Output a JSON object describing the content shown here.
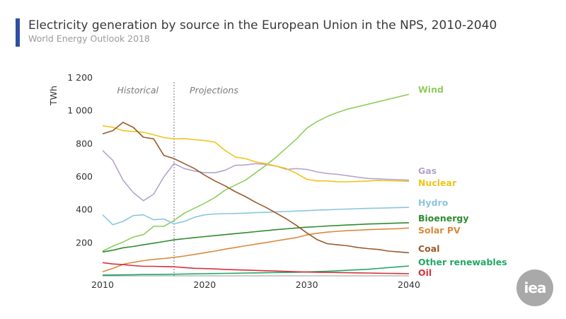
{
  "title": "Electricity generation by source in the European Union in the NPS, 2010-2040",
  "subtitle": "World Energy Outlook 2018",
  "logo_text": "iea",
  "chart_data": {
    "type": "line",
    "ylabel": "TWh",
    "xlabel": "",
    "xlim": [
      2010,
      2040
    ],
    "ylim": [
      0,
      1200
    ],
    "x_ticks": [
      "2010",
      "2020",
      "2030",
      "2040"
    ],
    "y_ticks": [
      "200",
      "400",
      "600",
      "800",
      "1 000",
      "1 200"
    ],
    "y_tick_values": [
      200,
      400,
      600,
      800,
      1000,
      1200
    ],
    "x_tick_values": [
      2010,
      2020,
      2030,
      2040
    ],
    "grid": false,
    "divider_year": 2017,
    "region_labels": [
      "Historical",
      "Projections"
    ],
    "series": [
      {
        "name": "Wind",
        "color": "#8fce5e",
        "x": [
          2010,
          2011,
          2012,
          2013,
          2014,
          2015,
          2016,
          2017,
          2018,
          2019,
          2020,
          2021,
          2022,
          2023,
          2024,
          2025,
          2026,
          2027,
          2028,
          2029,
          2030,
          2031,
          2032,
          2033,
          2034,
          2035,
          2036,
          2037,
          2038,
          2039,
          2040
        ],
        "y": [
          150,
          180,
          205,
          235,
          250,
          300,
          300,
          335,
          380,
          410,
          440,
          475,
          520,
          550,
          580,
          625,
          670,
          720,
          775,
          830,
          895,
          935,
          965,
          990,
          1010,
          1025,
          1040,
          1055,
          1070,
          1085,
          1100
        ]
      },
      {
        "name": "Gas",
        "color": "#b4a3cf",
        "x": [
          2010,
          2011,
          2012,
          2013,
          2014,
          2015,
          2016,
          2017,
          2018,
          2019,
          2020,
          2021,
          2022,
          2023,
          2024,
          2025,
          2026,
          2027,
          2028,
          2029,
          2030,
          2031,
          2032,
          2033,
          2034,
          2035,
          2036,
          2037,
          2038,
          2039,
          2040
        ],
        "y": [
          760,
          700,
          580,
          505,
          455,
          495,
          600,
          680,
          650,
          635,
          625,
          625,
          640,
          670,
          672,
          680,
          675,
          665,
          645,
          650,
          645,
          630,
          620,
          615,
          607,
          598,
          590,
          588,
          585,
          583,
          580
        ]
      },
      {
        "name": "Nuclear",
        "color": "#f0c419",
        "x": [
          2010,
          2011,
          2012,
          2013,
          2014,
          2015,
          2016,
          2017,
          2018,
          2019,
          2020,
          2021,
          2022,
          2023,
          2024,
          2025,
          2026,
          2027,
          2028,
          2029,
          2030,
          2031,
          2032,
          2033,
          2034,
          2035,
          2036,
          2037,
          2038,
          2039,
          2040
        ],
        "y": [
          910,
          900,
          880,
          875,
          870,
          855,
          838,
          830,
          832,
          825,
          820,
          810,
          760,
          720,
          710,
          690,
          680,
          665,
          650,
          620,
          585,
          575,
          575,
          570,
          570,
          572,
          575,
          578,
          577,
          575,
          573
        ]
      },
      {
        "name": "Hydro",
        "color": "#89c6e0",
        "x": [
          2010,
          2011,
          2012,
          2013,
          2014,
          2015,
          2016,
          2017,
          2018,
          2019,
          2020,
          2021,
          2022,
          2023,
          2024,
          2025,
          2026,
          2027,
          2028,
          2029,
          2030,
          2031,
          2032,
          2033,
          2034,
          2035,
          2036,
          2037,
          2038,
          2039,
          2040
        ],
        "y": [
          370,
          310,
          330,
          365,
          370,
          340,
          345,
          315,
          330,
          355,
          370,
          375,
          377,
          378,
          380,
          383,
          385,
          388,
          390,
          393,
          395,
          398,
          400,
          403,
          405,
          407,
          409,
          410,
          412,
          414,
          415
        ]
      },
      {
        "name": "Bioenergy",
        "color": "#2e8b2e",
        "x": [
          2010,
          2011,
          2012,
          2013,
          2014,
          2015,
          2016,
          2017,
          2018,
          2019,
          2020,
          2021,
          2022,
          2023,
          2024,
          2025,
          2026,
          2027,
          2028,
          2029,
          2030,
          2031,
          2032,
          2033,
          2034,
          2035,
          2036,
          2037,
          2038,
          2039,
          2040
        ],
        "y": [
          145,
          155,
          170,
          178,
          188,
          198,
          208,
          218,
          225,
          232,
          238,
          244,
          250,
          256,
          262,
          268,
          274,
          280,
          285,
          290,
          295,
          298,
          302,
          305,
          308,
          311,
          314,
          316,
          318,
          320,
          322
        ]
      },
      {
        "name": "Solar PV",
        "color": "#d98a3d",
        "x": [
          2010,
          2011,
          2012,
          2013,
          2014,
          2015,
          2016,
          2017,
          2018,
          2019,
          2020,
          2021,
          2022,
          2023,
          2024,
          2025,
          2026,
          2027,
          2028,
          2029,
          2030,
          2031,
          2032,
          2033,
          2034,
          2035,
          2036,
          2037,
          2038,
          2039,
          2040
        ],
        "y": [
          25,
          45,
          70,
          82,
          92,
          100,
          105,
          112,
          120,
          130,
          140,
          150,
          162,
          172,
          182,
          192,
          202,
          212,
          222,
          232,
          248,
          258,
          265,
          270,
          274,
          277,
          280,
          282,
          284,
          286,
          290
        ]
      },
      {
        "name": "Coal",
        "color": "#9b5a2a",
        "x": [
          2010,
          2011,
          2012,
          2013,
          2014,
          2015,
          2016,
          2017,
          2018,
          2019,
          2020,
          2021,
          2022,
          2023,
          2024,
          2025,
          2026,
          2027,
          2028,
          2029,
          2030,
          2031,
          2032,
          2033,
          2034,
          2035,
          2036,
          2037,
          2038,
          2039,
          2040
        ],
        "y": [
          860,
          880,
          930,
          900,
          840,
          830,
          730,
          710,
          680,
          650,
          610,
          575,
          545,
          510,
          480,
          445,
          415,
          380,
          345,
          305,
          260,
          220,
          195,
          188,
          182,
          172,
          165,
          160,
          150,
          145,
          140
        ]
      },
      {
        "name": "Other renewables",
        "color": "#22a866",
        "x": [
          2010,
          2011,
          2012,
          2013,
          2014,
          2015,
          2016,
          2017,
          2018,
          2019,
          2020,
          2021,
          2022,
          2023,
          2024,
          2025,
          2026,
          2027,
          2028,
          2029,
          2030,
          2031,
          2032,
          2033,
          2034,
          2035,
          2036,
          2037,
          2038,
          2039,
          2040
        ],
        "y": [
          5,
          5,
          6,
          7,
          8,
          8,
          9,
          10,
          11,
          12,
          13,
          14,
          15,
          16,
          17,
          18,
          19,
          20,
          21,
          22,
          24,
          26,
          28,
          31,
          34,
          37,
          40,
          45,
          50,
          55,
          60
        ]
      },
      {
        "name": "Oil",
        "color": "#d6323a",
        "x": [
          2010,
          2011,
          2012,
          2013,
          2014,
          2015,
          2016,
          2017,
          2018,
          2019,
          2020,
          2021,
          2022,
          2023,
          2024,
          2025,
          2026,
          2027,
          2028,
          2029,
          2030,
          2031,
          2032,
          2033,
          2034,
          2035,
          2036,
          2037,
          2038,
          2039,
          2040
        ],
        "y": [
          80,
          72,
          68,
          62,
          58,
          58,
          56,
          55,
          50,
          46,
          44,
          42,
          39,
          37,
          35,
          33,
          31,
          29,
          27,
          25,
          23,
          22,
          21,
          20,
          19,
          18,
          17,
          16,
          15,
          14,
          13
        ]
      }
    ]
  }
}
